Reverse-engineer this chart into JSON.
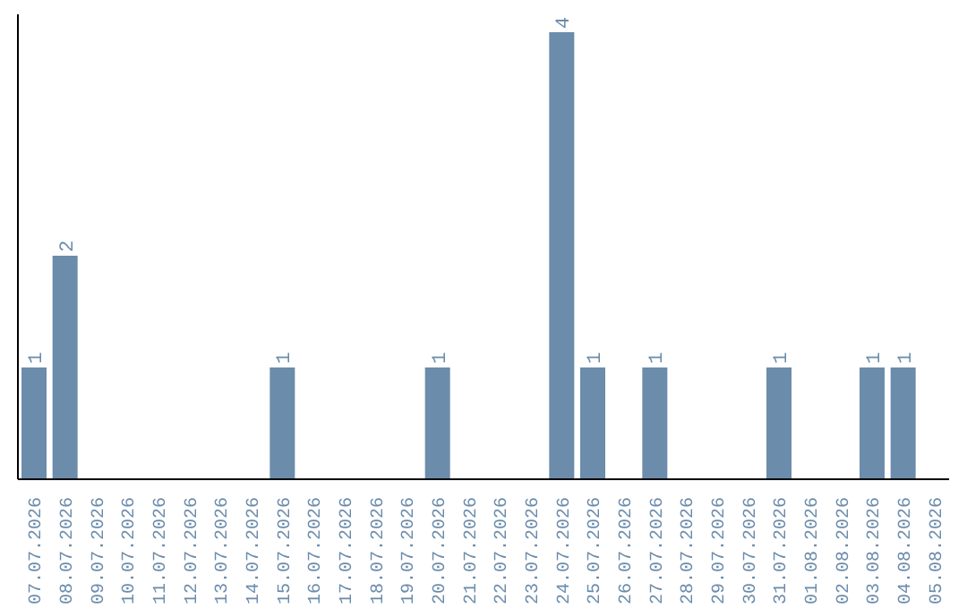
{
  "chart_data": {
    "type": "bar",
    "categories": [
      "07.07.2026",
      "08.07.2026",
      "09.07.2026",
      "10.07.2026",
      "11.07.2026",
      "12.07.2026",
      "13.07.2026",
      "14.07.2026",
      "15.07.2026",
      "16.07.2026",
      "17.07.2026",
      "18.07.2026",
      "19.07.2026",
      "20.07.2026",
      "21.07.2026",
      "22.07.2026",
      "23.07.2026",
      "24.07.2026",
      "25.07.2026",
      "26.07.2026",
      "27.07.2026",
      "28.07.2026",
      "29.07.2026",
      "30.07.2026",
      "31.07.2026",
      "01.08.2026",
      "02.08.2026",
      "03.08.2026",
      "04.08.2026",
      "05.08.2026"
    ],
    "values": [
      1,
      2,
      0,
      0,
      0,
      0,
      0,
      0,
      1,
      0,
      0,
      0,
      0,
      1,
      0,
      0,
      0,
      4,
      1,
      0,
      1,
      0,
      0,
      0,
      1,
      0,
      0,
      1,
      1,
      0
    ],
    "value_labels": [
      "1",
      "2",
      null,
      null,
      null,
      null,
      null,
      null,
      "1",
      null,
      null,
      null,
      null,
      "1",
      null,
      null,
      null,
      "4",
      "1",
      null,
      "1",
      null,
      null,
      null,
      "1",
      null,
      null,
      "1",
      "1",
      null
    ],
    "color": "#6b8cab",
    "data_labels": false
  }
}
